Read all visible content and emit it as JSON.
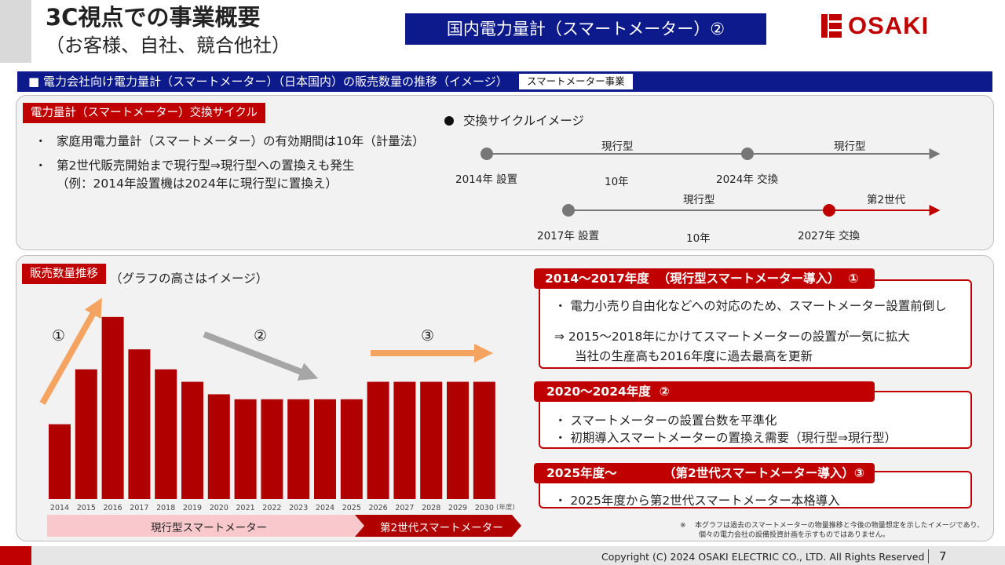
{
  "header": {
    "title": "3C視点での事業概要",
    "subtitle": "（お客様、自社、競合他社）",
    "page_heading": "国内電力量計（スマートメーター）②",
    "logo_text": "OSAKI"
  },
  "section": {
    "title": "■  電力会社向け電力量計（スマートメーター）（日本国内）の販売数量の推移（イメージ）",
    "tag": "スマートメーター事業"
  },
  "cycle_panel": {
    "label": "電力量計（スマートメーター）交換サイクル",
    "bullets": [
      "家庭用電力量計（スマートメーター）の有効期間は10年（計量法）",
      "第2世代販売開始まで現行型⇒現行型への置換えも発生"
    ],
    "example": "（例：2014年設置機は2024年に現行型に置換え）",
    "bullet_mark": "・"
  },
  "cycle_image": {
    "title": "交換サイクルイメージ",
    "row1": {
      "start": "2014年 設置",
      "end": "2024年 交換",
      "label_a": "現行型",
      "label_b": "現行型",
      "span": "10年"
    },
    "row2": {
      "start": "2017年 設置",
      "end": "2027年 交換",
      "label_a": "現行型",
      "label_b": "第2世代",
      "span": "10年"
    }
  },
  "chart_panel": {
    "label": "販売数量推移",
    "subtitle": "（グラフの高さはイメージ）",
    "markers": [
      "①",
      "②",
      "③"
    ],
    "year_unit": "(年度)",
    "band_current": "現行型スマートメーター",
    "band_next": "第2世代スマートメーター"
  },
  "chart_data": {
    "type": "bar",
    "categories": [
      "2014",
      "2015",
      "2016",
      "2017",
      "2018",
      "2019",
      "2020",
      "2021",
      "2022",
      "2023",
      "2024",
      "2025",
      "2026",
      "2027",
      "2028",
      "2029",
      "2030"
    ],
    "values": [
      30,
      52,
      73,
      60,
      52,
      47,
      42,
      40,
      40,
      40,
      40,
      40,
      47,
      47,
      47,
      47,
      47
    ],
    "title": "",
    "xlabel": "(年度)",
    "ylabel": "",
    "grid": false,
    "bar_color": "#b00000",
    "trend_arrows": [
      {
        "label": "①",
        "direction": "up",
        "color": "#f4a460"
      },
      {
        "label": "②",
        "direction": "down",
        "color": "#a6a6a6"
      },
      {
        "label": "③",
        "direction": "flat",
        "color": "#f4a460"
      }
    ]
  },
  "phases": [
    {
      "head": "2014～2017年度  （現行型スマートメーター導入）  ①",
      "lines": [
        "・  電力小売り自由化などへの対応のため、スマートメーター設置前倒し"
      ],
      "arrow_line": "⇒  2015～2018年にかけてスマートメーターの設置が一気に拡大",
      "arrow_line2": "当社の生産高も2016年度に過去最高を更新"
    },
    {
      "head": "2020～2024年度  ②",
      "lines": [
        "・  スマートメーターの設置台数を平準化",
        "・  初期導入スマートメーターの置換え需要（現行型⇒現行型）"
      ]
    },
    {
      "head": "2025年度～           （第2世代スマートメーター導入）③",
      "lines": [
        "・  2025年度から第2世代スマートメーター本格導入"
      ]
    }
  ],
  "note": {
    "mark": "※",
    "line1": "本グラフは過去のスマートメーターの物量推移と今後の物量想定を示したイメージであり、",
    "line2": "個々の電力会社の設備投資計画を示すものではありません。"
  },
  "footer": {
    "copyright": "Copyright (C) 2024 OSAKI ELECTRIC CO., LTD. All Rights Reserved",
    "page": "7"
  },
  "colors": {
    "navy": "#0d1a8c",
    "red": "#c00000",
    "bar": "#b00000",
    "orange": "#f4a460",
    "gray": "#a6a6a6"
  }
}
